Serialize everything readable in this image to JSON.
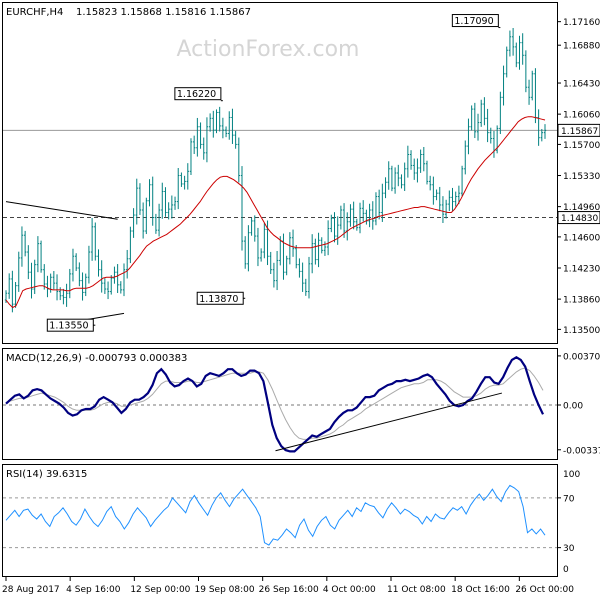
{
  "header": {
    "symbol": "EURCHF,H4",
    "ohlc": "1.15823 1.15868 1.15816 1.15867"
  },
  "watermark": "ActionForex.com",
  "chart_data": [
    {
      "panel": "price",
      "type": "candlestick",
      "ylim": [
        1.1335,
        1.1737
      ],
      "y_ticks": [
        "1.17160",
        "1.16880",
        "1.16430",
        "1.16060",
        "1.15700",
        "1.15330",
        "1.14960",
        "1.14600",
        "1.14230",
        "1.13860",
        "1.13500"
      ],
      "y_tick_values": [
        1.1716,
        1.1688,
        1.1643,
        1.1606,
        1.157,
        1.1533,
        1.1496,
        1.146,
        1.1423,
        1.1386,
        1.135
      ],
      "close_line": {
        "label": "1.15867",
        "value": 1.15867,
        "color": "#999999"
      },
      "support_line": {
        "label": "1.14830",
        "value": 1.1483,
        "color": "#444444"
      },
      "candle_color": "#008080",
      "ma_color": "#cc0000",
      "annotations": [
        {
          "label": "1.13550",
          "x": 28,
          "value": 1.1355
        },
        {
          "label": "1.16220",
          "x": 68,
          "value": 1.1622
        },
        {
          "label": "1.13870",
          "x": 75,
          "value": 1.1387
        },
        {
          "label": "1.17090",
          "x": 155,
          "value": 1.1709
        }
      ],
      "trendlines": [
        {
          "from": [
            0,
            1.1502
          ],
          "to": [
            35,
            1.1481
          ]
        },
        {
          "from": [
            18,
            1.1357
          ],
          "to": [
            37,
            1.1369
          ]
        }
      ],
      "close_series": [
        1.1393,
        1.141,
        1.138,
        1.1402,
        1.1435,
        1.1462,
        1.1442,
        1.1418,
        1.1398,
        1.1427,
        1.1452,
        1.1421,
        1.1404,
        1.1398,
        1.1412,
        1.1405,
        1.1395,
        1.139,
        1.1388,
        1.1393,
        1.1416,
        1.1437,
        1.1423,
        1.1408,
        1.1394,
        1.1412,
        1.1442,
        1.1472,
        1.1437,
        1.1421,
        1.1405,
        1.1398,
        1.1395,
        1.1411,
        1.1418,
        1.1403,
        1.1397,
        1.1421,
        1.1434,
        1.1467,
        1.1486,
        1.1518,
        1.1492,
        1.1467,
        1.1503,
        1.1522,
        1.1483,
        1.1468,
        1.1492,
        1.1514,
        1.1489,
        1.1493,
        1.1498,
        1.1502,
        1.1533,
        1.1523,
        1.1526,
        1.1538,
        1.1573,
        1.1566,
        1.1591,
        1.157,
        1.156,
        1.1591,
        1.1601,
        1.1587,
        1.1608,
        1.1592,
        1.1587,
        1.1583,
        1.1602,
        1.1581,
        1.157,
        1.1533,
        1.1455,
        1.1428,
        1.1465,
        1.1479,
        1.1461,
        1.1435,
        1.1442,
        1.1469,
        1.1437,
        1.1421,
        1.1408,
        1.1432,
        1.1455,
        1.1418,
        1.1434,
        1.1459,
        1.1446,
        1.1427,
        1.1419,
        1.1405,
        1.1395,
        1.1428,
        1.1452,
        1.1433,
        1.1456,
        1.1444,
        1.1448,
        1.147,
        1.1482,
        1.1461,
        1.1474,
        1.1492,
        1.1467,
        1.1478,
        1.1493,
        1.1478,
        1.1471,
        1.1494,
        1.1488,
        1.1479,
        1.1492,
        1.1479,
        1.1508,
        1.1489,
        1.1512,
        1.1525,
        1.1541,
        1.1518,
        1.1536,
        1.153,
        1.1522,
        1.1541,
        1.1558,
        1.1545,
        1.1536,
        1.1542,
        1.1558,
        1.1547,
        1.1526,
        1.1522,
        1.1508,
        1.1512,
        1.1498,
        1.1487,
        1.1499,
        1.1507,
        1.1502,
        1.1508,
        1.1512,
        1.1541,
        1.1568,
        1.1591,
        1.1612,
        1.1585,
        1.1596,
        1.1618,
        1.1601,
        1.1584,
        1.1577,
        1.1563,
        1.1589,
        1.1626,
        1.1654,
        1.1682,
        1.1698,
        1.1686,
        1.1667,
        1.1691,
        1.1676,
        1.1638,
        1.1626,
        1.1654,
        1.1602,
        1.1578,
        1.1584,
        1.15867
      ],
      "ma_series": [
        1.1385,
        1.138,
        1.1376,
        1.1378,
        1.1387,
        1.1396,
        1.1398,
        1.1399,
        1.14,
        1.1401,
        1.1402,
        1.1402,
        1.14,
        1.1398,
        1.1397,
        1.1397,
        1.1397,
        1.1397,
        1.1396,
        1.1396,
        1.1398,
        1.1399,
        1.1399,
        1.1399,
        1.1399,
        1.14,
        1.1402,
        1.1405,
        1.1408,
        1.1411,
        1.1412,
        1.1412,
        1.1412,
        1.1413,
        1.1415,
        1.1417,
        1.1419,
        1.1423,
        1.1428,
        1.1433,
        1.1438,
        1.1444,
        1.1449,
        1.1452,
        1.1455,
        1.1457,
        1.1459,
        1.1461,
        1.1463,
        1.1466,
        1.1469,
        1.1472,
        1.1475,
        1.1479,
        1.1483,
        1.1487,
        1.1492,
        1.1497,
        1.1502,
        1.1508,
        1.1514,
        1.1519,
        1.1524,
        1.1528,
        1.1531,
        1.1532,
        1.1532,
        1.153,
        1.1528,
        1.1525,
        1.1522,
        1.1518,
        1.1513,
        1.1506,
        1.1499,
        1.1492,
        1.1485,
        1.1478,
        1.1471,
        1.1466,
        1.1462,
        1.1459,
        1.1456,
        1.1453,
        1.1451,
        1.1449,
        1.1448,
        1.1447,
        1.1447,
        1.1447,
        1.1447,
        1.1447,
        1.1448,
        1.1449,
        1.145,
        1.1451,
        1.1452,
        1.1454,
        1.1456,
        1.1458,
        1.1461,
        1.1464,
        1.1467,
        1.147,
        1.1472,
        1.1474,
        1.1476,
        1.1478,
        1.148,
        1.1481,
        1.1482,
        1.1484,
        1.1485,
        1.1486,
        1.1487,
        1.1488,
        1.1489,
        1.149,
        1.1491,
        1.1492,
        1.1493,
        1.1494,
        1.1495,
        1.1495,
        1.1496,
        1.1496,
        1.1495,
        1.1494,
        1.1493,
        1.1492,
        1.1491,
        1.149,
        1.1489,
        1.1489,
        1.1493,
        1.1499,
        1.1506,
        1.1514,
        1.1522,
        1.1529,
        1.1535,
        1.1541,
        1.1546,
        1.1551,
        1.1555,
        1.1559,
        1.1563,
        1.1567,
        1.1572,
        1.1577,
        1.1582,
        1.1587,
        1.1592,
        1.1597,
        1.16,
        1.1602,
        1.1603,
        1.1603,
        1.1602,
        1.1601,
        1.16,
        1.1599
      ]
    },
    {
      "panel": "macd",
      "type": "line",
      "title": "MACD(12,26,9) -0.000793 0.000383",
      "ylim": [
        -0.004,
        0.004
      ],
      "y_ticks": [
        "0.003705",
        "0.00",
        "-0.003379"
      ],
      "y_tick_values": [
        0.003705,
        0.0,
        -0.003379
      ],
      "macd_color": "#000080",
      "signal_color": "#aaaaaa",
      "macd_series": [
        0.0001,
        0.0004,
        0.0007,
        0.0008,
        0.0005,
        0.0007,
        0.0011,
        0.0012,
        0.0011,
        0.0008,
        0.0005,
        0.0003,
        0.0001,
        -0.0002,
        -0.0006,
        -0.0008,
        -0.0007,
        -0.0004,
        -0.0003,
        -0.0003,
        -0.0001,
        0.0004,
        0.0006,
        0.0004,
        0.0002,
        -0.0002,
        -0.0006,
        -0.0003,
        0.0002,
        0.0004,
        0.0004,
        0.0006,
        0.0009,
        0.0015,
        0.0024,
        0.0027,
        0.0023,
        0.0017,
        0.0014,
        0.0015,
        0.0018,
        0.002,
        0.0018,
        0.0014,
        0.0016,
        0.0022,
        0.0024,
        0.0023,
        0.0022,
        0.0024,
        0.0027,
        0.0027,
        0.0024,
        0.0022,
        0.0023,
        0.0026,
        0.0026,
        0.0024,
        0.0018,
        0.0002,
        -0.0015,
        -0.0025,
        -0.0031,
        -0.0034,
        -0.0035,
        -0.0035,
        -0.0032,
        -0.0029,
        -0.0026,
        -0.0023,
        -0.0024,
        -0.0022,
        -0.002,
        -0.0018,
        -0.0013,
        -0.0009,
        -0.0006,
        -0.0004,
        -0.0004,
        -0.0002,
        0.0002,
        0.0006,
        0.0006,
        0.0007,
        0.0011,
        0.0013,
        0.0015,
        0.0016,
        0.0018,
        0.0018,
        0.0019,
        0.0018,
        0.0019,
        0.002,
        0.0022,
        0.0023,
        0.0021,
        0.0016,
        0.0012,
        0.0008,
        0.0003,
        0.0,
        -0.0001,
        0.0,
        0.0003,
        0.0005,
        0.001,
        0.0016,
        0.0021,
        0.0021,
        0.0017,
        0.0016,
        0.0021,
        0.0028,
        0.0034,
        0.0036,
        0.0034,
        0.0029,
        0.0018,
        0.0008,
        0.0,
        -0.0007
      ],
      "signal_series": [
        0.0002,
        0.0003,
        0.0004,
        0.0005,
        0.0005,
        0.0006,
        0.0007,
        0.0008,
        0.0009,
        0.0008,
        0.0007,
        0.0006,
        0.0004,
        0.0002,
        -0.0001,
        -0.0003,
        -0.0004,
        -0.0004,
        -0.0004,
        -0.0004,
        -0.0003,
        -0.0001,
        0.0001,
        0.0002,
        0.0002,
        0.0001,
        -0.0001,
        -0.0001,
        0.0,
        0.0001,
        0.0002,
        0.0003,
        0.0005,
        0.0008,
        0.0012,
        0.0016,
        0.0018,
        0.0018,
        0.0017,
        0.0017,
        0.0017,
        0.0018,
        0.0018,
        0.0017,
        0.0017,
        0.0018,
        0.0019,
        0.002,
        0.0021,
        0.0022,
        0.0023,
        0.0024,
        0.0024,
        0.0024,
        0.0024,
        0.0024,
        0.0025,
        0.0025,
        0.0024,
        0.0019,
        0.0012,
        0.0004,
        -0.0004,
        -0.0011,
        -0.0017,
        -0.0022,
        -0.0025,
        -0.0026,
        -0.0026,
        -0.0025,
        -0.0025,
        -0.0024,
        -0.0023,
        -0.0022,
        -0.002,
        -0.0017,
        -0.0015,
        -0.0012,
        -0.001,
        -0.0008,
        -0.0006,
        -0.0003,
        -0.0001,
        0.0001,
        0.0003,
        0.0005,
        0.0007,
        0.0009,
        0.0011,
        0.0013,
        0.0014,
        0.0015,
        0.0016,
        0.0016,
        0.0017,
        0.0019,
        0.0019,
        0.0019,
        0.0018,
        0.0016,
        0.0013,
        0.001,
        0.0008,
        0.0006,
        0.0006,
        0.0006,
        0.0007,
        0.0009,
        0.0012,
        0.0014,
        0.0015,
        0.0015,
        0.0016,
        0.0019,
        0.0022,
        0.0025,
        0.0027,
        0.0028,
        0.0026,
        0.0022,
        0.0017,
        0.0011
      ],
      "trendlines": [
        {
          "from": [
            0.5,
            -0.00345
          ],
          "to": [
            0.92,
            0.0009
          ]
        }
      ]
    },
    {
      "panel": "rsi",
      "type": "line",
      "title": "RSI(14) 39.6315",
      "ylim": [
        8,
        94
      ],
      "y_ticks": [
        "100",
        "70",
        "30",
        "0"
      ],
      "y_tick_values": [
        100,
        70,
        30,
        0
      ],
      "level_lines": [
        70,
        30
      ],
      "rsi_color": "#1e90ff",
      "rsi_series": [
        52,
        56,
        60,
        55,
        60,
        61,
        56,
        53,
        57,
        51,
        47,
        55,
        58,
        62,
        57,
        51,
        48,
        53,
        61,
        55,
        50,
        47,
        52,
        59,
        63,
        55,
        51,
        45,
        50,
        57,
        62,
        58,
        54,
        47,
        52,
        56,
        60,
        63,
        70,
        66,
        62,
        58,
        67,
        72,
        66,
        61,
        56,
        64,
        70,
        74,
        68,
        63,
        69,
        73,
        77,
        72,
        67,
        62,
        55,
        34,
        32,
        37,
        36,
        40,
        45,
        42,
        38,
        48,
        53,
        44,
        39,
        47,
        52,
        55,
        48,
        45,
        52,
        56,
        60,
        55,
        62,
        59,
        66,
        64,
        63,
        58,
        54,
        61,
        66,
        62,
        57,
        61,
        59,
        56,
        54,
        49,
        55,
        51,
        57,
        54,
        53,
        58,
        62,
        60,
        63,
        57,
        64,
        69,
        73,
        68,
        72,
        77,
        71,
        67,
        75,
        80,
        78,
        75,
        63,
        42,
        45,
        41,
        45,
        40
      ]
    }
  ],
  "x_axis": {
    "labels": [
      "28 Aug 2017",
      "4 Sep 16:00",
      "12 Sep 00:00",
      "19 Sep 08:00",
      "26 Sep 16:00",
      "4 Oct 00:00",
      "11 Oct 08:00",
      "18 Oct 16:00",
      "26 Oct 00:00"
    ]
  }
}
